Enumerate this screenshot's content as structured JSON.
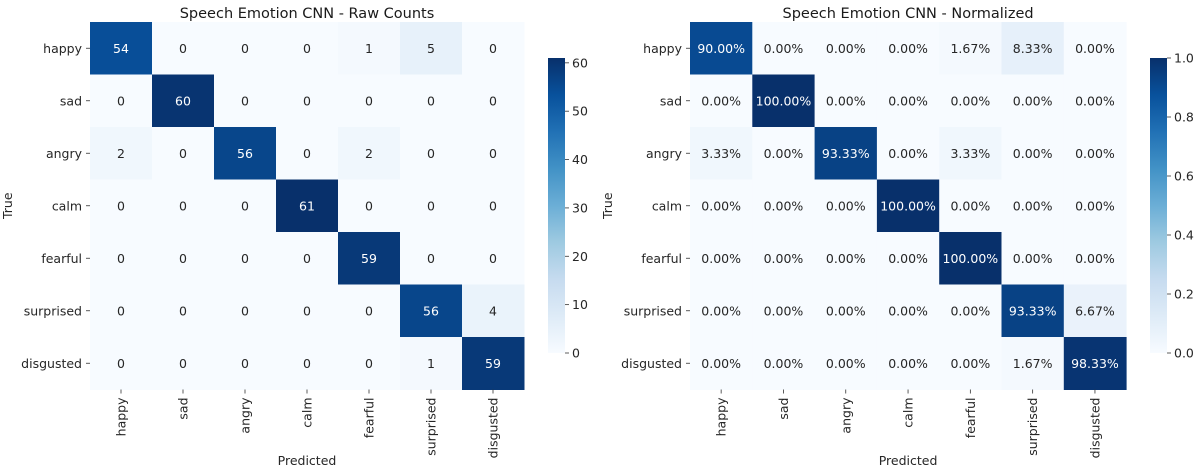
{
  "chart_data": [
    {
      "type": "heatmap",
      "title": "Speech Emotion CNN - Raw Counts",
      "xlabel": "Predicted",
      "ylabel": "True",
      "row_labels": [
        "happy",
        "sad",
        "angry",
        "calm",
        "fearful",
        "surprised",
        "disgusted"
      ],
      "col_labels": [
        "happy",
        "sad",
        "angry",
        "calm",
        "fearful",
        "surprised",
        "disgusted"
      ],
      "values": [
        [
          54,
          0,
          0,
          0,
          1,
          5,
          0
        ],
        [
          0,
          60,
          0,
          0,
          0,
          0,
          0
        ],
        [
          2,
          0,
          56,
          0,
          2,
          0,
          0
        ],
        [
          0,
          0,
          0,
          61,
          0,
          0,
          0
        ],
        [
          0,
          0,
          0,
          0,
          59,
          0,
          0
        ],
        [
          0,
          0,
          0,
          0,
          0,
          56,
          4
        ],
        [
          0,
          0,
          0,
          0,
          0,
          1,
          59
        ]
      ],
      "cell_labels": [
        [
          "54",
          "0",
          "0",
          "0",
          "1",
          "5",
          "0"
        ],
        [
          "0",
          "60",
          "0",
          "0",
          "0",
          "0",
          "0"
        ],
        [
          "2",
          "0",
          "56",
          "0",
          "2",
          "0",
          "0"
        ],
        [
          "0",
          "0",
          "0",
          "61",
          "0",
          "0",
          "0"
        ],
        [
          "0",
          "0",
          "0",
          "0",
          "59",
          "0",
          "0"
        ],
        [
          "0",
          "0",
          "0",
          "0",
          "0",
          "56",
          "4"
        ],
        [
          "0",
          "0",
          "0",
          "0",
          "0",
          "1",
          "59"
        ]
      ],
      "color_range": [
        0,
        61
      ],
      "colorbar_ticks": [
        0,
        10,
        20,
        30,
        40,
        50,
        60
      ],
      "colorbar_tick_labels": [
        "0",
        "10",
        "20",
        "30",
        "40",
        "50",
        "60"
      ],
      "colormap": "Blues"
    },
    {
      "type": "heatmap",
      "title": "Speech Emotion CNN - Normalized",
      "xlabel": "Predicted",
      "ylabel": "True",
      "row_labels": [
        "happy",
        "sad",
        "angry",
        "calm",
        "fearful",
        "surprised",
        "disgusted"
      ],
      "col_labels": [
        "happy",
        "sad",
        "angry",
        "calm",
        "fearful",
        "surprised",
        "disgusted"
      ],
      "values": [
        [
          0.9,
          0.0,
          0.0,
          0.0,
          0.0167,
          0.0833,
          0.0
        ],
        [
          0.0,
          1.0,
          0.0,
          0.0,
          0.0,
          0.0,
          0.0
        ],
        [
          0.0333,
          0.0,
          0.9333,
          0.0,
          0.0333,
          0.0,
          0.0
        ],
        [
          0.0,
          0.0,
          0.0,
          1.0,
          0.0,
          0.0,
          0.0
        ],
        [
          0.0,
          0.0,
          0.0,
          0.0,
          1.0,
          0.0,
          0.0
        ],
        [
          0.0,
          0.0,
          0.0,
          0.0,
          0.0,
          0.9333,
          0.0667
        ],
        [
          0.0,
          0.0,
          0.0,
          0.0,
          0.0,
          0.0167,
          0.9833
        ]
      ],
      "cell_labels": [
        [
          "90.00%",
          "0.00%",
          "0.00%",
          "0.00%",
          "1.67%",
          "8.33%",
          "0.00%"
        ],
        [
          "0.00%",
          "100.00%",
          "0.00%",
          "0.00%",
          "0.00%",
          "0.00%",
          "0.00%"
        ],
        [
          "3.33%",
          "0.00%",
          "93.33%",
          "0.00%",
          "3.33%",
          "0.00%",
          "0.00%"
        ],
        [
          "0.00%",
          "0.00%",
          "0.00%",
          "100.00%",
          "0.00%",
          "0.00%",
          "0.00%"
        ],
        [
          "0.00%",
          "0.00%",
          "0.00%",
          "0.00%",
          "100.00%",
          "0.00%",
          "0.00%"
        ],
        [
          "0.00%",
          "0.00%",
          "0.00%",
          "0.00%",
          "0.00%",
          "93.33%",
          "6.67%"
        ],
        [
          "0.00%",
          "0.00%",
          "0.00%",
          "0.00%",
          "0.00%",
          "1.67%",
          "98.33%"
        ]
      ],
      "color_range": [
        0,
        1
      ],
      "colorbar_ticks": [
        0,
        0.2,
        0.4,
        0.6,
        0.8,
        1.0
      ],
      "colorbar_tick_labels": [
        "0.0",
        "0.2",
        "0.4",
        "0.6",
        "0.8",
        "1.0"
      ],
      "colormap": "Blues"
    }
  ]
}
